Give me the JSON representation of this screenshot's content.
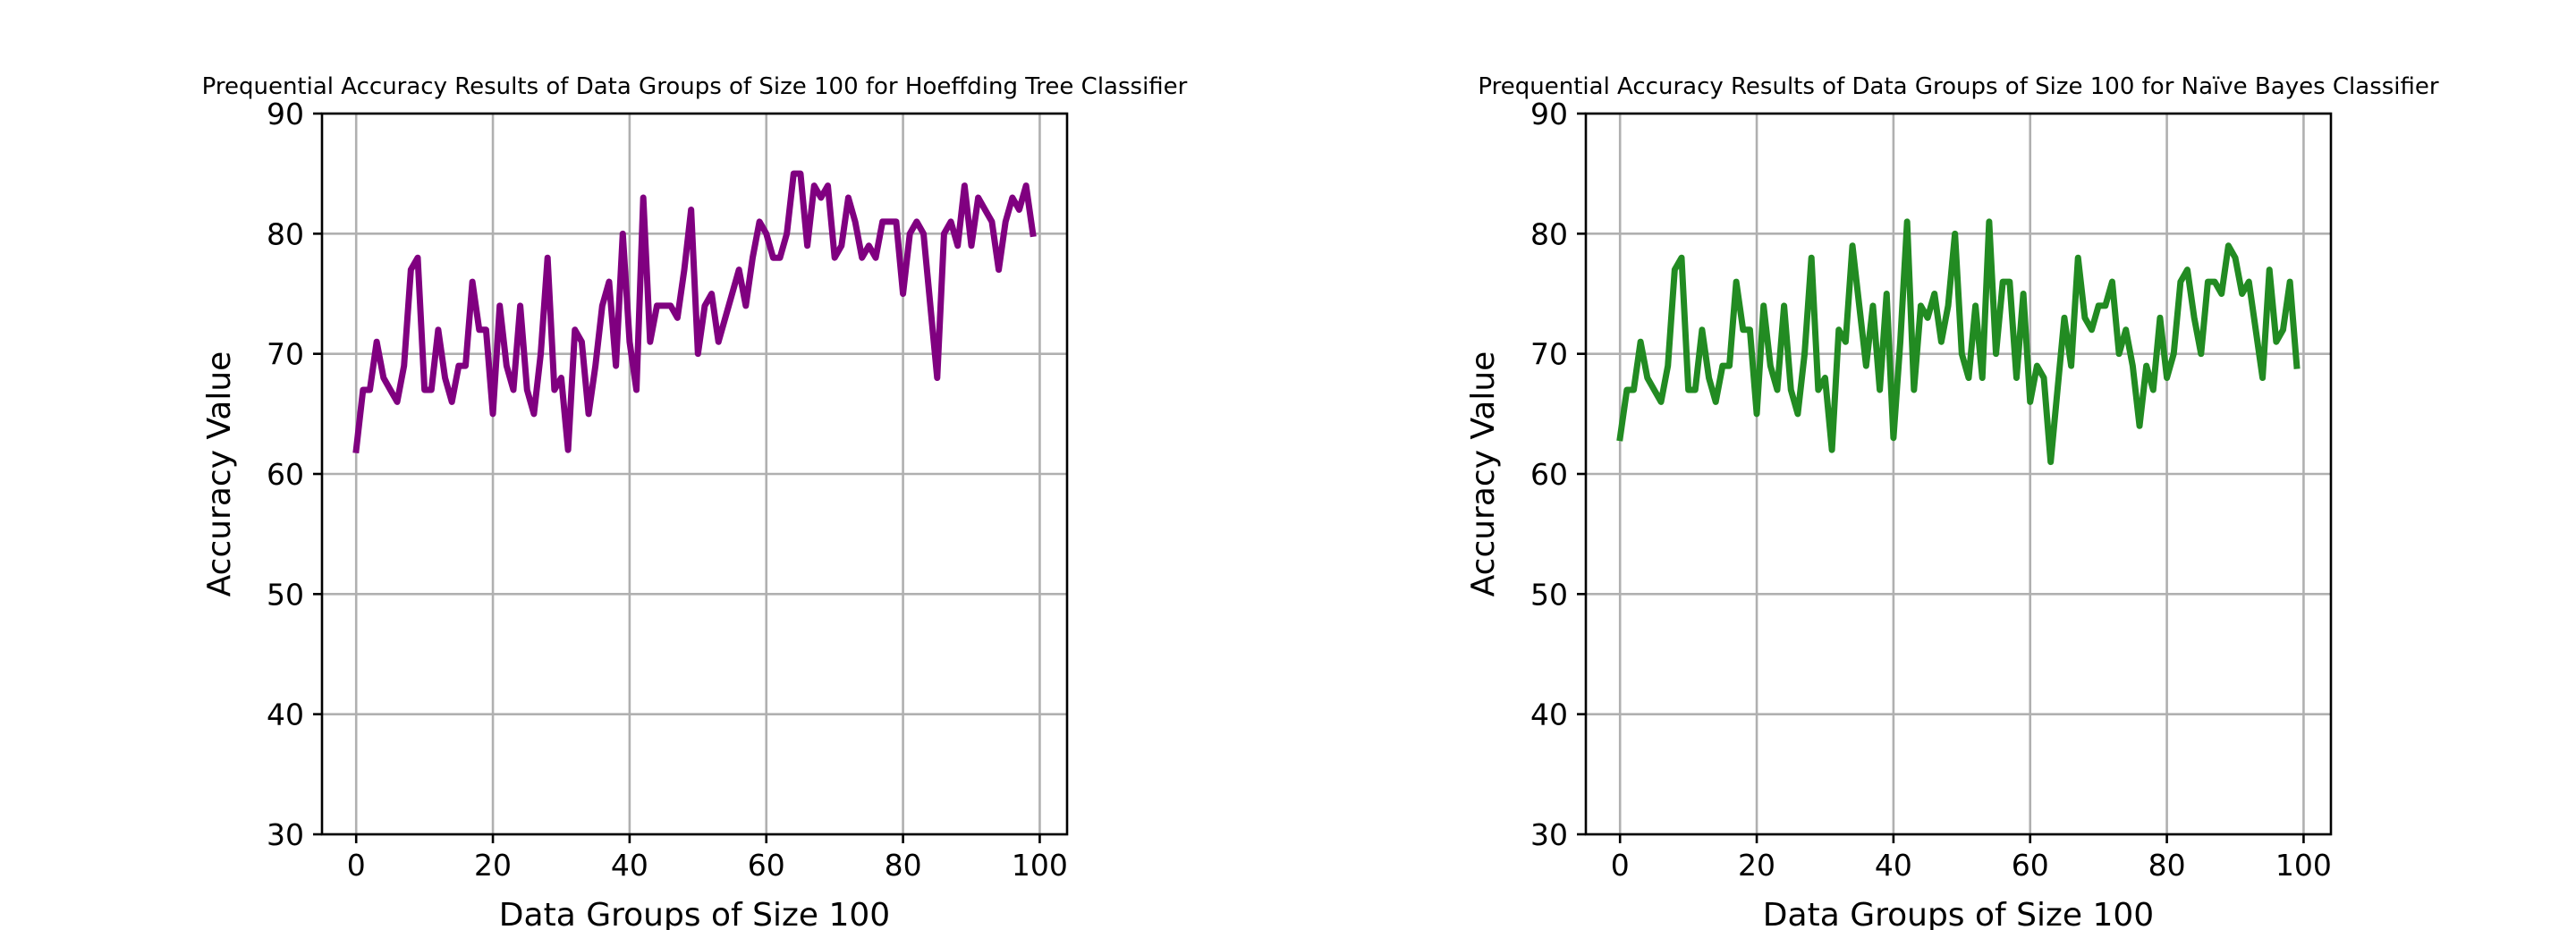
{
  "chart_data": [
    {
      "type": "line",
      "title": "Prequential Accuracy Results of Data Groups of Size 100 for Hoeffding Tree Classifier",
      "xlabel": "Data Groups of Size 100",
      "ylabel": "Accuracy Value",
      "xlim": [
        -5,
        104
      ],
      "ylim": [
        30,
        90
      ],
      "xticks": [
        0,
        20,
        40,
        60,
        80,
        100
      ],
      "yticks": [
        30,
        40,
        50,
        60,
        70,
        80,
        90
      ],
      "grid": true,
      "series": [
        {
          "color": "#800080",
          "x": [
            0,
            1,
            2,
            3,
            4,
            5,
            6,
            7,
            8,
            9,
            10,
            11,
            12,
            13,
            14,
            15,
            16,
            17,
            18,
            19,
            20,
            21,
            22,
            23,
            24,
            25,
            26,
            27,
            28,
            29,
            30,
            31,
            32,
            33,
            34,
            35,
            36,
            37,
            38,
            39,
            40,
            41,
            42,
            43,
            44,
            45,
            46,
            47,
            48,
            49,
            50,
            51,
            52,
            53,
            54,
            55,
            56,
            57,
            58,
            59,
            60,
            61,
            62,
            63,
            64,
            65,
            66,
            67,
            68,
            69,
            70,
            71,
            72,
            73,
            74,
            75,
            76,
            77,
            78,
            79,
            80,
            81,
            82,
            83,
            84,
            85,
            86,
            87,
            88,
            89,
            90,
            91,
            92,
            93,
            94,
            95,
            96,
            97,
            98,
            99
          ],
          "y": [
            62,
            67,
            67,
            71,
            68,
            67,
            66,
            69,
            77,
            78,
            67,
            67,
            72,
            68,
            66,
            69,
            69,
            76,
            72,
            72,
            65,
            74,
            69,
            67,
            74,
            67,
            65,
            70,
            78,
            67,
            68,
            62,
            72,
            71,
            65,
            69,
            74,
            76,
            69,
            80,
            71,
            67,
            83,
            71,
            74,
            74,
            74,
            73,
            77,
            82,
            70,
            74,
            75,
            71,
            73,
            75,
            77,
            74,
            78,
            81,
            80,
            78,
            78,
            80,
            85,
            85,
            79,
            84,
            83,
            84,
            78,
            79,
            83,
            81,
            78,
            79,
            78,
            81,
            81,
            81,
            75,
            80,
            81,
            80,
            74,
            68,
            80,
            81,
            79,
            84,
            79,
            83,
            82,
            81,
            77,
            81,
            83,
            82,
            84,
            80
          ]
        }
      ]
    },
    {
      "type": "line",
      "title": "Prequential Accuracy Results of Data Groups of Size 100 for Naïve Bayes Classifier",
      "xlabel": "Data Groups of Size 100",
      "ylabel": "Accuracy Value",
      "xlim": [
        -5,
        104
      ],
      "ylim": [
        30,
        90
      ],
      "xticks": [
        0,
        20,
        40,
        60,
        80,
        100
      ],
      "yticks": [
        30,
        40,
        50,
        60,
        70,
        80,
        90
      ],
      "grid": true,
      "series": [
        {
          "color": "#228b22",
          "x": [
            0,
            1,
            2,
            3,
            4,
            5,
            6,
            7,
            8,
            9,
            10,
            11,
            12,
            13,
            14,
            15,
            16,
            17,
            18,
            19,
            20,
            21,
            22,
            23,
            24,
            25,
            26,
            27,
            28,
            29,
            30,
            31,
            32,
            33,
            34,
            35,
            36,
            37,
            38,
            39,
            40,
            41,
            42,
            43,
            44,
            45,
            46,
            47,
            48,
            49,
            50,
            51,
            52,
            53,
            54,
            55,
            56,
            57,
            58,
            59,
            60,
            61,
            62,
            63,
            64,
            65,
            66,
            67,
            68,
            69,
            70,
            71,
            72,
            73,
            74,
            75,
            76,
            77,
            78,
            79,
            80,
            81,
            82,
            83,
            84,
            85,
            86,
            87,
            88,
            89,
            90,
            91,
            92,
            93,
            94,
            95,
            96,
            97,
            98,
            99
          ],
          "y": [
            63,
            67,
            67,
            71,
            68,
            67,
            66,
            69,
            77,
            78,
            67,
            67,
            72,
            68,
            66,
            69,
            69,
            76,
            72,
            72,
            65,
            74,
            69,
            67,
            74,
            67,
            65,
            70,
            78,
            67,
            68,
            62,
            72,
            71,
            79,
            74,
            69,
            74,
            67,
            75,
            63,
            71,
            81,
            67,
            74,
            73,
            75,
            71,
            74,
            80,
            70,
            68,
            74,
            68,
            81,
            70,
            76,
            76,
            68,
            75,
            66,
            69,
            68,
            61,
            67,
            73,
            69,
            78,
            73,
            72,
            74,
            74,
            76,
            70,
            72,
            69,
            64,
            69,
            67,
            73,
            68,
            70,
            76,
            77,
            73,
            70,
            76,
            76,
            75,
            79,
            78,
            75,
            76,
            72,
            68,
            77,
            71,
            72,
            76,
            69
          ]
        }
      ]
    }
  ]
}
